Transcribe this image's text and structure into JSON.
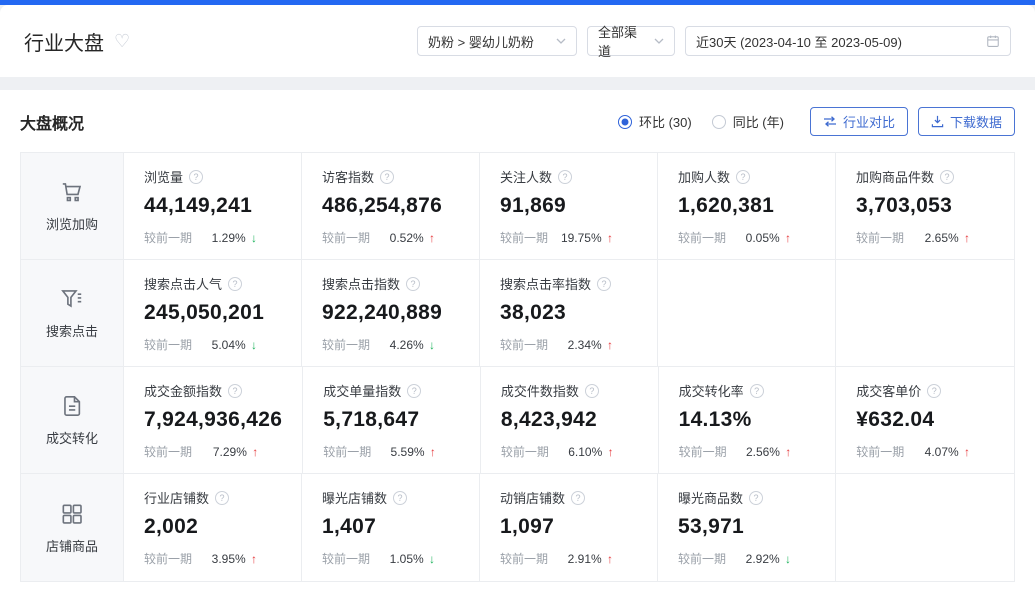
{
  "header": {
    "title": "行业大盘",
    "category_select": "奶粉 > 婴幼儿奶粉",
    "channel_select": "全部渠道",
    "date_range": "近30天 (2023-04-10 至 2023-05-09)"
  },
  "overview": {
    "section_title": "大盘概况",
    "radio_options": [
      {
        "label": "环比 (30)",
        "selected": true
      },
      {
        "label": "同比 (年)",
        "selected": false
      }
    ],
    "compare_button": "行业对比",
    "download_button": "下载数据"
  },
  "colors": {
    "topbar_blue": "#2368f2",
    "accent_blue": "#3f6bd0",
    "up_red": "#e5383b",
    "down_green": "#1db35c"
  },
  "table": {
    "change_label": "较前一期",
    "groups": [
      {
        "key": "browse-cart",
        "name": "浏览加购",
        "icon": "cart-icon",
        "metrics": [
          {
            "label": "浏览量",
            "value": "44,149,241",
            "change": "1.29%",
            "direction": "down"
          },
          {
            "label": "访客指数",
            "value": "486,254,876",
            "change": "0.52%",
            "direction": "up"
          },
          {
            "label": "关注人数",
            "value": "91,869",
            "change": "19.75%",
            "direction": "up"
          },
          {
            "label": "加购人数",
            "value": "1,620,381",
            "change": "0.05%",
            "direction": "up"
          },
          {
            "label": "加购商品件数",
            "value": "3,703,053",
            "change": "2.65%",
            "direction": "up"
          }
        ]
      },
      {
        "key": "search-click",
        "name": "搜索点击",
        "icon": "funnel-icon",
        "metrics": [
          {
            "label": "搜索点击人气",
            "value": "245,050,201",
            "change": "5.04%",
            "direction": "down"
          },
          {
            "label": "搜索点击指数",
            "value": "922,240,889",
            "change": "4.26%",
            "direction": "down"
          },
          {
            "label": "搜索点击率指数",
            "value": "38,023",
            "change": "2.34%",
            "direction": "up"
          },
          null,
          null
        ]
      },
      {
        "key": "deal-conversion",
        "name": "成交转化",
        "icon": "document-icon",
        "metrics": [
          {
            "label": "成交金额指数",
            "value": "7,924,936,426",
            "change": "7.29%",
            "direction": "up"
          },
          {
            "label": "成交单量指数",
            "value": "5,718,647",
            "change": "5.59%",
            "direction": "up"
          },
          {
            "label": "成交件数指数",
            "value": "8,423,942",
            "change": "6.10%",
            "direction": "up"
          },
          {
            "label": "成交转化率",
            "value": "14.13%",
            "change": "2.56%",
            "direction": "up"
          },
          {
            "label": "成交客单价",
            "value": "¥632.04",
            "change": "4.07%",
            "direction": "up"
          }
        ]
      },
      {
        "key": "shop-product",
        "name": "店铺商品",
        "icon": "grid-icon",
        "metrics": [
          {
            "label": "行业店铺数",
            "value": "2,002",
            "change": "3.95%",
            "direction": "up"
          },
          {
            "label": "曝光店铺数",
            "value": "1,407",
            "change": "1.05%",
            "direction": "down"
          },
          {
            "label": "动销店铺数",
            "value": "1,097",
            "change": "2.91%",
            "direction": "up"
          },
          {
            "label": "曝光商品数",
            "value": "53,971",
            "change": "2.92%",
            "direction": "down"
          },
          null
        ]
      }
    ]
  }
}
